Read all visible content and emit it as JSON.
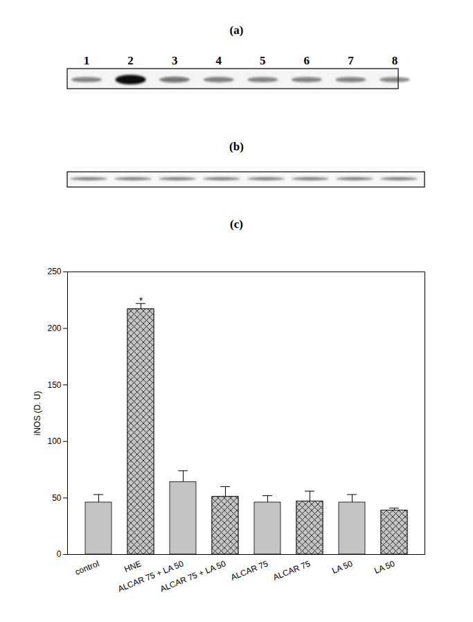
{
  "panel_labels": [
    "(a)",
    "(b)",
    "(c)"
  ],
  "lane_labels": [
    "1",
    "2",
    "3",
    "4",
    "5",
    "6",
    "7",
    "8"
  ],
  "chart_data": {
    "type": "bar",
    "categories": [
      "control",
      "HNE",
      "ALCAR 75 + LA 50",
      "ALCAR 75 + LA 50",
      "ALCAR 75",
      "ALCAR 75",
      "LA 50",
      "LA 50"
    ],
    "values": [
      46,
      217,
      64,
      51,
      46,
      47,
      46,
      39
    ],
    "errors": [
      7,
      5,
      10,
      9,
      6,
      9,
      7,
      2
    ],
    "colors": [
      "#c4c4c4",
      "#c4c4c4",
      "#c4c4c4",
      "#c4c4c4",
      "#c4c4c4",
      "#c4c4c4",
      "#c4c4c4",
      "#c4c4c4"
    ],
    "y_label": "iNOS (D. U)",
    "ylim": [
      0,
      250
    ],
    "yticks": [
      0,
      50,
      100,
      150,
      200,
      250
    ],
    "annotations": [
      {
        "category": "HNE",
        "text": "*"
      }
    ],
    "grid": false
  }
}
